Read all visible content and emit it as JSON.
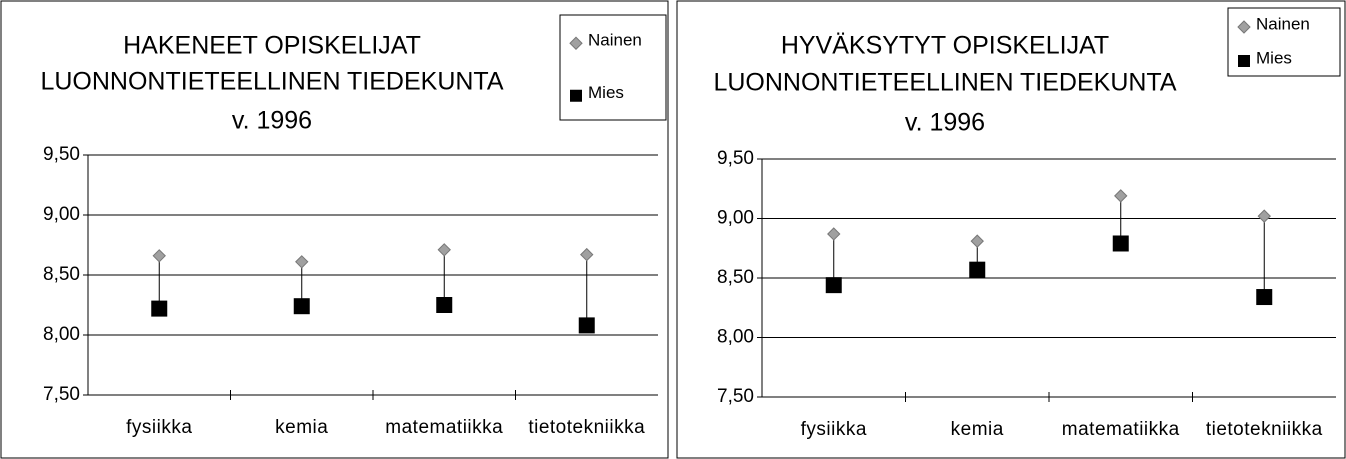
{
  "chart_data": [
    {
      "type": "dot",
      "title": [
        "HAKENEET OPISKELIJAT",
        "LUONNONTIETEELLINEN TIEDEKUNTA",
        "v. 1996"
      ],
      "categories": [
        "fysiikka",
        "kemia",
        "matematiikka",
        "tietotekniikka"
      ],
      "series": [
        {
          "name": "Nainen",
          "color": "#a0a0a0",
          "marker": "diamond",
          "values": [
            8.66,
            8.61,
            8.71,
            8.67
          ]
        },
        {
          "name": "Mies",
          "color": "#000000",
          "marker": "square",
          "values": [
            8.22,
            8.24,
            8.25,
            8.08
          ]
        }
      ],
      "ylim": [
        7.5,
        9.5
      ],
      "yticks": [
        {
          "value": 7.5,
          "label": "7,50"
        },
        {
          "value": 8,
          "label": "8,00"
        },
        {
          "value": 8.5,
          "label": "8,50"
        },
        {
          "value": 9,
          "label": "9,00"
        },
        {
          "value": 9.5,
          "label": "9,50"
        }
      ],
      "grid": true,
      "legend": "top-right"
    },
    {
      "type": "dot",
      "title": [
        "HYVÄKSYTYT OPISKELIJAT",
        "LUONNONTIETEELLINEN TIEDEKUNTA",
        "v. 1996"
      ],
      "categories": [
        "fysiikka",
        "kemia",
        "matematiikka",
        "tietotekniikka"
      ],
      "series": [
        {
          "name": "Nainen",
          "color": "#a0a0a0",
          "marker": "diamond",
          "values": [
            8.87,
            8.81,
            9.19,
            9.02
          ]
        },
        {
          "name": "Mies",
          "color": "#000000",
          "marker": "square",
          "values": [
            8.44,
            8.57,
            8.79,
            8.34
          ]
        }
      ],
      "ylim": [
        7.5,
        9.5
      ],
      "yticks": [
        {
          "value": 7.5,
          "label": "7,50"
        },
        {
          "value": 8,
          "label": "8,00"
        },
        {
          "value": 8.5,
          "label": "8,50"
        },
        {
          "value": 9,
          "label": "9,00"
        },
        {
          "value": 9.5,
          "label": "9,50"
        }
      ],
      "grid": true,
      "legend": "top-right"
    }
  ]
}
